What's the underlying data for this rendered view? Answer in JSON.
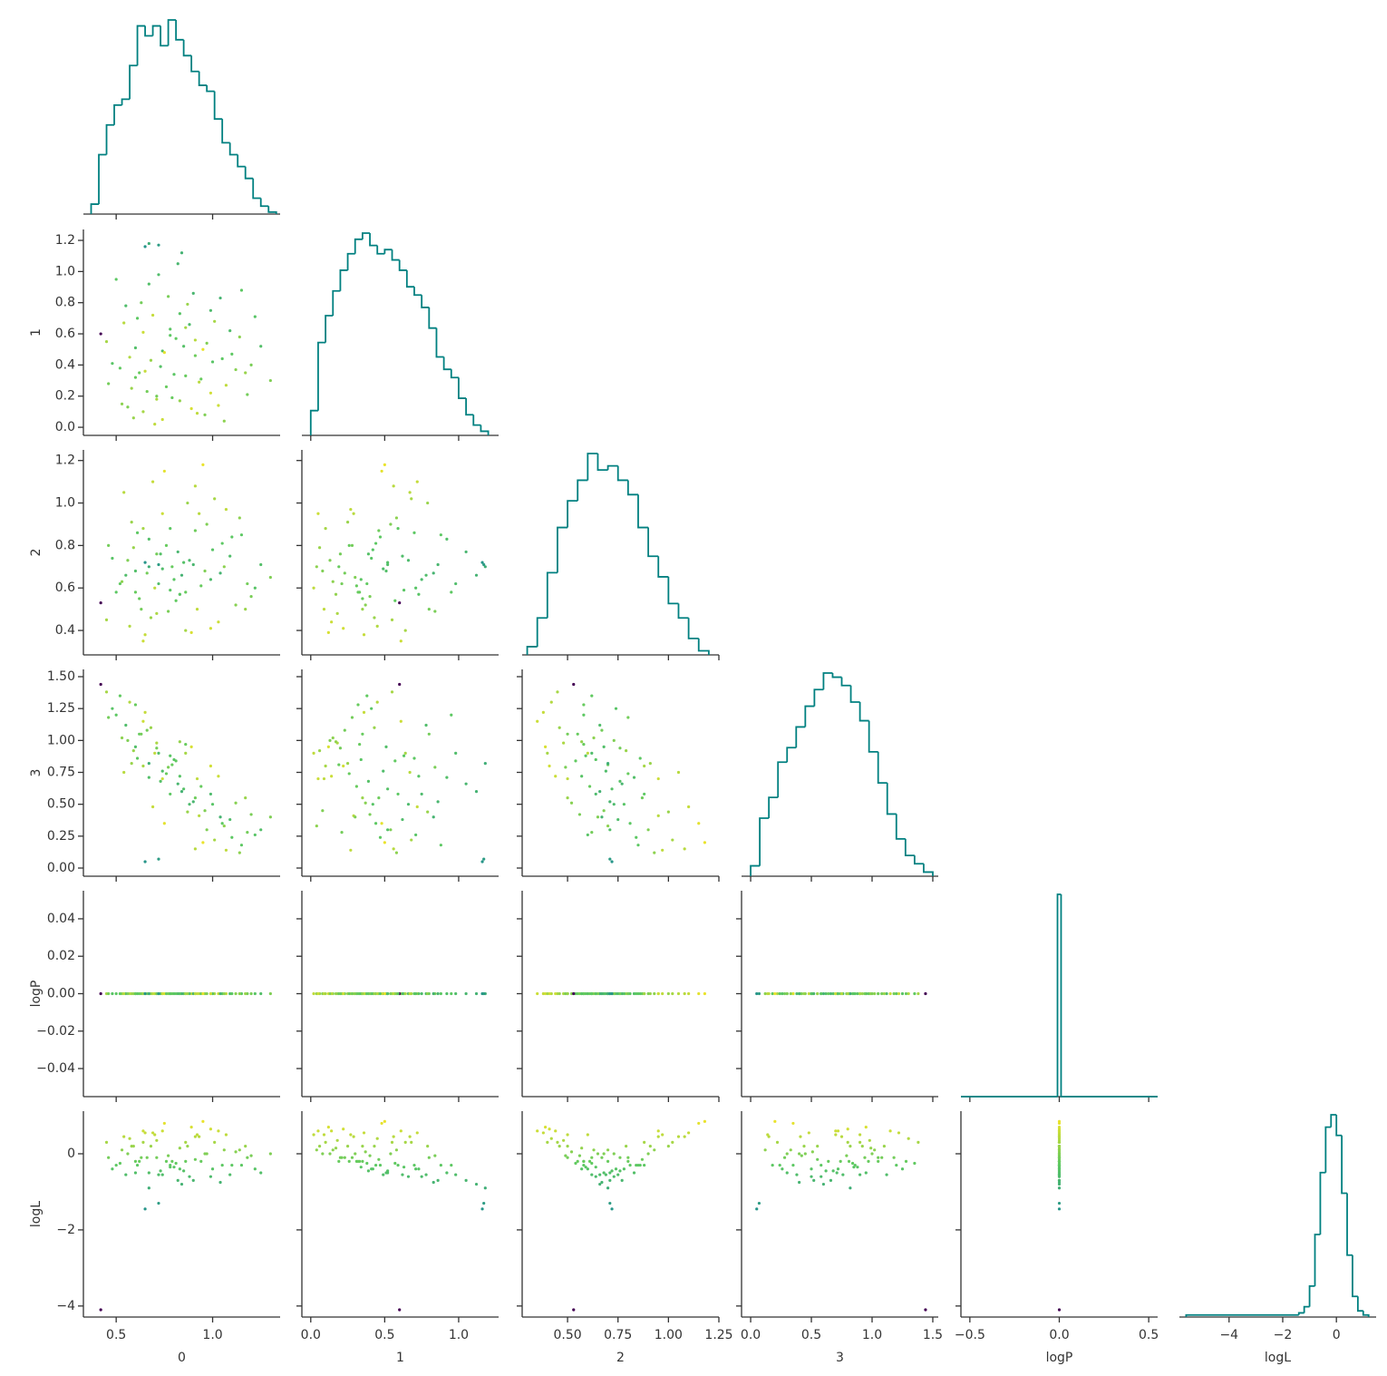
{
  "chart_data": {
    "type": "corner",
    "hist_color": "#008080",
    "cmap": [
      "#440154",
      "#3b528b",
      "#21918c",
      "#5ec962",
      "#fde725"
    ],
    "clim": [
      -4.1,
      1.0
    ],
    "variables": [
      {
        "name": "0",
        "xlim": [
          0.33,
          1.35
        ],
        "xticks": [
          0.5,
          {
            "value": 1.0,
            "label": "1.0"
          }
        ],
        "bins": [
          0.37,
          0.41,
          0.45,
          0.49,
          0.53,
          0.57,
          0.61,
          0.65,
          0.69,
          0.73,
          0.77,
          0.81,
          0.85,
          0.89,
          0.93,
          0.97,
          1.01,
          1.05,
          1.09,
          1.13,
          1.17,
          1.21,
          1.25,
          1.29,
          1.33
        ],
        "values": [
          5,
          30,
          45,
          55,
          58,
          75,
          95,
          90,
          95,
          85,
          98,
          88,
          80,
          72,
          65,
          62,
          48,
          36,
          30,
          24,
          18,
          8,
          4,
          1
        ]
      },
      {
        "name": "1",
        "xlim": [
          -0.06,
          1.27
        ],
        "xticks": [
          {
            "value": 0,
            "label": "0.0"
          },
          0.5,
          {
            "value": 1,
            "label": "1.0"
          }
        ],
        "ylim": [
          -0.052,
          1.27
        ],
        "yticks": [
          {
            "value": 0,
            "label": "0.0"
          },
          0.2,
          0.4,
          0.6,
          0.8,
          {
            "value": 1,
            "label": "1.0"
          },
          1.2
        ],
        "bins": [
          0,
          0.05,
          0.1,
          0.15,
          0.2,
          0.25,
          0.3,
          0.35,
          0.4,
          0.45,
          0.5,
          0.55,
          0.6,
          0.65,
          0.7,
          0.75,
          0.8,
          0.85,
          0.9,
          0.95,
          1.0,
          1.05,
          1.1,
          1.15,
          1.2
        ],
        "values": [
          12,
          45,
          58,
          70,
          80,
          88,
          95,
          98,
          92,
          88,
          90,
          85,
          80,
          72,
          68,
          62,
          52,
          38,
          32,
          28,
          18,
          10,
          5,
          2
        ]
      },
      {
        "name": "2",
        "xlim": [
          0.275,
          1.25
        ],
        "xticks": [
          {
            "value": 0.5,
            "label": "0.50"
          },
          0.75,
          {
            "value": 1,
            "label": "1.00"
          },
          1.25
        ],
        "ylim": [
          0.285,
          1.25
        ],
        "yticks": [
          0.4,
          0.6,
          0.8,
          {
            "value": 1,
            "label": "1.0"
          },
          1.2
        ],
        "bins": [
          0.3,
          0.35,
          0.4,
          0.45,
          0.5,
          0.55,
          0.6,
          0.65,
          0.7,
          0.75,
          0.8,
          0.85,
          0.9,
          0.95,
          1.0,
          1.05,
          1.1,
          1.15,
          1.2
        ],
        "values": [
          4,
          18,
          40,
          62,
          75,
          85,
          98,
          90,
          92,
          85,
          78,
          62,
          48,
          38,
          25,
          18,
          8,
          2
        ]
      },
      {
        "name": "3",
        "xlim": [
          -0.075,
          1.545
        ],
        "xticks": [
          {
            "value": 0,
            "label": "0.0"
          },
          0.5,
          {
            "value": 1,
            "label": "1.0"
          },
          1.5
        ],
        "ylim": [
          -0.064,
          1.557
        ],
        "yticks": [
          {
            "value": 0,
            "label": "0.00"
          },
          0.25,
          {
            "value": 0.5,
            "label": "0.50"
          },
          0.75,
          {
            "value": 1,
            "label": "1.00"
          },
          1.25,
          {
            "value": 1.5,
            "label": "1.50"
          }
        ],
        "bins": [
          0,
          0.075,
          0.15,
          0.225,
          0.3,
          0.375,
          0.45,
          0.525,
          0.6,
          0.675,
          0.75,
          0.825,
          0.9,
          0.975,
          1.05,
          1.125,
          1.2,
          1.275,
          1.35,
          1.425,
          1.5
        ],
        "values": [
          5,
          28,
          38,
          55,
          62,
          72,
          82,
          90,
          98,
          96,
          92,
          84,
          75,
          60,
          45,
          30,
          18,
          10,
          6,
          2
        ]
      },
      {
        "name": "logP",
        "xlim": [
          -0.55,
          0.55
        ],
        "xticks": [
          {
            "value": -0.5,
            "label": "−0.5"
          },
          {
            "value": 0,
            "label": "0.0"
          },
          0.5
        ],
        "ylim": [
          -0.055,
          0.055
        ],
        "yticks": [
          {
            "value": -0.04,
            "label": "−0.04"
          },
          {
            "value": -0.02,
            "label": "−0.02"
          },
          {
            "value": 0,
            "label": "0.00"
          },
          0.02,
          0.04
        ],
        "bins": [
          -0.55,
          -0.01,
          0.01,
          0.55
        ],
        "values": [
          0,
          100,
          0
        ]
      },
      {
        "name": "logL",
        "xlim": [
          -5.85,
          1.48
        ],
        "xticks": [
          {
            "value": -4,
            "label": "−4"
          },
          {
            "value": -2,
            "label": "−2"
          },
          0
        ],
        "ylim": [
          -4.29,
          1.12
        ],
        "yticks": [
          {
            "value": -4,
            "label": "−4"
          },
          {
            "value": -2,
            "label": "−2"
          },
          0
        ],
        "bins": [
          -5.6,
          -1.4,
          -1.2,
          -1.0,
          -0.8,
          -0.6,
          -0.4,
          -0.2,
          0,
          0.2,
          0.4,
          0.6,
          0.8,
          1.0,
          1.2
        ],
        "values": [
          1,
          2,
          5,
          15,
          40,
          70,
          92,
          98,
          88,
          60,
          30,
          10,
          3,
          1
        ]
      }
    ],
    "samples": [
      [
        0.62,
        0.35,
        0.55,
        1.05,
        0,
        -0.2
      ],
      [
        0.85,
        0.52,
        0.72,
        0.62,
        0,
        -0.45
      ],
      [
        0.71,
        0.18,
        0.48,
        0.98,
        0,
        0.35
      ],
      [
        1.05,
        0.44,
        0.81,
        0.35,
        0,
        -0.3
      ],
      [
        0.55,
        0.78,
        0.66,
        1.12,
        0,
        -0.55
      ],
      [
        0.93,
        0.29,
        0.95,
        0.41,
        0,
        0.45
      ],
      [
        0.78,
        0.63,
        0.59,
        0.88,
        0,
        -0.35
      ],
      [
        1.18,
        0.21,
        0.62,
        0.28,
        0,
        -0.1
      ],
      [
        0.48,
        0.41,
        0.74,
        1.25,
        0,
        -0.4
      ],
      [
        0.67,
        0.92,
        0.83,
        0.71,
        0,
        -0.5
      ],
      [
        0.89,
        0.12,
        0.39,
        0.95,
        0,
        0.7
      ],
      [
        1.01,
        0.68,
        1.02,
        0.22,
        0,
        0.3
      ],
      [
        0.58,
        0.25,
        0.91,
        0.82,
        0,
        0.2
      ],
      [
        0.74,
        0.49,
        0.69,
        0.76,
        0,
        -0.55
      ],
      [
        1.12,
        0.37,
        0.52,
        0.51,
        0,
        0.05
      ],
      [
        0.82,
        1.05,
        0.77,
        0.66,
        0,
        -0.7
      ],
      [
        0.45,
        0.55,
        0.45,
        1.38,
        0,
        0.3
      ],
      [
        0.96,
        0.08,
        0.68,
        0.45,
        0,
        0.0
      ],
      [
        0.69,
        0.72,
        1.1,
        0.48,
        0,
        0.55
      ],
      [
        0.86,
        0.33,
        0.58,
        0.97,
        0,
        -0.2
      ],
      [
        1.25,
        0.52,
        0.71,
        0.3,
        0,
        -0.5
      ],
      [
        0.53,
        0.15,
        0.63,
        1.02,
        0,
        0.1
      ],
      [
        0.77,
        0.84,
        0.49,
        0.79,
        0,
        -0.05
      ],
      [
        0.91,
        0.46,
        0.87,
        0.55,
        0,
        -0.15
      ],
      [
        0.64,
        0.61,
        0.35,
        1.15,
        0,
        0.6
      ],
      [
        1.07,
        0.27,
        0.97,
        0.14,
        0,
        0.5
      ],
      [
        0.73,
        0.39,
        0.76,
        0.68,
        0,
        -0.45
      ],
      [
        0.99,
        0.75,
        0.64,
        0.58,
        0,
        -0.6
      ],
      [
        0.59,
        0.06,
        0.79,
        0.92,
        0,
        0.2
      ],
      [
        0.81,
        0.57,
        0.54,
        0.84,
        0,
        -0.25
      ],
      [
        1.15,
        0.88,
        0.85,
        0.18,
        0,
        -0.3
      ],
      [
        0.66,
        0.23,
        0.67,
        1.08,
        0,
        -0.1
      ],
      [
        0.88,
        0.66,
        0.73,
        0.5,
        0,
        -0.6
      ],
      [
        0.5,
        0.95,
        0.58,
        1.2,
        0,
        -0.3
      ],
      [
        1.03,
        0.14,
        0.44,
        0.72,
        0,
        0.6
      ],
      [
        0.75,
        0.48,
        1.15,
        0.35,
        0,
        0.8
      ],
      [
        0.94,
        0.31,
        0.61,
        0.64,
        0,
        -0.2
      ],
      [
        0.61,
        0.7,
        0.86,
        0.86,
        0,
        -0.3
      ],
      [
        1.2,
        0.4,
        0.56,
        0.42,
        0,
        -0.05
      ],
      [
        0.79,
        0.19,
        0.7,
        0.81,
        0,
        -0.2
      ],
      [
        0.42,
        0.6,
        0.53,
        1.44,
        0,
        -4.1
      ],
      [
        0.57,
        0.45,
        0.42,
        1.3,
        0,
        0.4
      ],
      [
        0.84,
        1.12,
        0.66,
        0.6,
        0,
        -0.8
      ],
      [
        0.97,
        0.54,
        0.9,
        0.3,
        0,
        0.0
      ],
      [
        0.7,
        0.02,
        0.6,
        0.9,
        0,
        0.5
      ],
      [
        1.09,
        0.62,
        0.75,
        0.38,
        0,
        -0.55
      ],
      [
        0.65,
        0.36,
        0.38,
        1.22,
        0,
        0.55
      ],
      [
        0.87,
        0.79,
        1.0,
        0.44,
        0,
        0.2
      ],
      [
        0.76,
        0.26,
        0.8,
        0.74,
        0,
        -0.2
      ],
      [
        1.3,
        0.3,
        0.65,
        0.4,
        0,
        0.0
      ],
      [
        0.6,
        0.51,
        0.68,
        0.95,
        0,
        -0.5
      ],
      [
        0.92,
        0.09,
        0.5,
        0.7,
        0,
        0.5
      ],
      [
        0.72,
        0.98,
        0.62,
        0.9,
        0,
        -0.55
      ],
      [
        1.0,
        0.42,
        0.78,
        0.5,
        0,
        -0.4
      ],
      [
        0.54,
        0.67,
        1.05,
        0.75,
        0,
        0.45
      ],
      [
        0.83,
        0.17,
        0.57,
        0.99,
        0,
        0.15
      ],
      [
        1.14,
        0.58,
        0.93,
        0.12,
        0,
        0.1
      ],
      [
        0.68,
        0.43,
        0.46,
        1.1,
        0,
        0.2
      ],
      [
        0.9,
        0.86,
        0.71,
        0.52,
        0,
        -0.7
      ],
      [
        0.46,
        0.28,
        0.8,
        1.18,
        0,
        -0.1
      ],
      [
        1.06,
        0.04,
        0.7,
        0.33,
        0,
        0.1
      ],
      [
        0.63,
        0.8,
        0.5,
        1.05,
        0,
        -0.1
      ],
      [
        0.95,
        0.5,
        1.18,
        0.2,
        0,
        0.85
      ],
      [
        0.8,
        0.34,
        0.64,
        0.85,
        0,
        -0.35
      ],
      [
        1.22,
        0.71,
        0.6,
        0.26,
        0,
        -0.4
      ],
      [
        0.56,
        0.13,
        0.73,
        1.0,
        0,
        0.0
      ],
      [
        0.78,
        0.59,
        0.88,
        0.58,
        0,
        -0.3
      ],
      [
        0.99,
        0.22,
        0.41,
        0.8,
        0,
        0.65
      ],
      [
        0.67,
        1.18,
        0.7,
        0.82,
        0,
        -0.9
      ],
      [
        1.1,
        0.47,
        0.84,
        0.24,
        0,
        -0.3
      ],
      [
        0.6,
        0.32,
        0.58,
        1.28,
        0,
        -0.2
      ],
      [
        0.86,
        0.64,
        0.4,
        0.9,
        0,
        0.3
      ],
      [
        0.74,
        0.05,
        0.95,
        0.7,
        0,
        0.6
      ],
      [
        1.04,
        0.83,
        0.67,
        0.4,
        0,
        -0.75
      ],
      [
        0.52,
        0.38,
        0.62,
        1.35,
        0,
        -0.25
      ],
      [
        0.91,
        0.56,
        1.08,
        0.15,
        0,
        0.45
      ],
      [
        0.71,
        0.2,
        0.76,
        0.94,
        0,
        -0.1
      ],
      [
        1.17,
        0.35,
        0.5,
        0.55,
        0,
        0.2
      ],
      [
        0.83,
        0.73,
        0.57,
        0.72,
        0,
        -0.4
      ],
      [
        0.64,
        0.1,
        0.88,
        0.8,
        0,
        0.3
      ],
      [
        0.65,
        1.16,
        0.72,
        0.05,
        0,
        -1.45
      ],
      [
        0.72,
        1.17,
        0.71,
        0.07,
        0,
        -1.3
      ]
    ]
  }
}
